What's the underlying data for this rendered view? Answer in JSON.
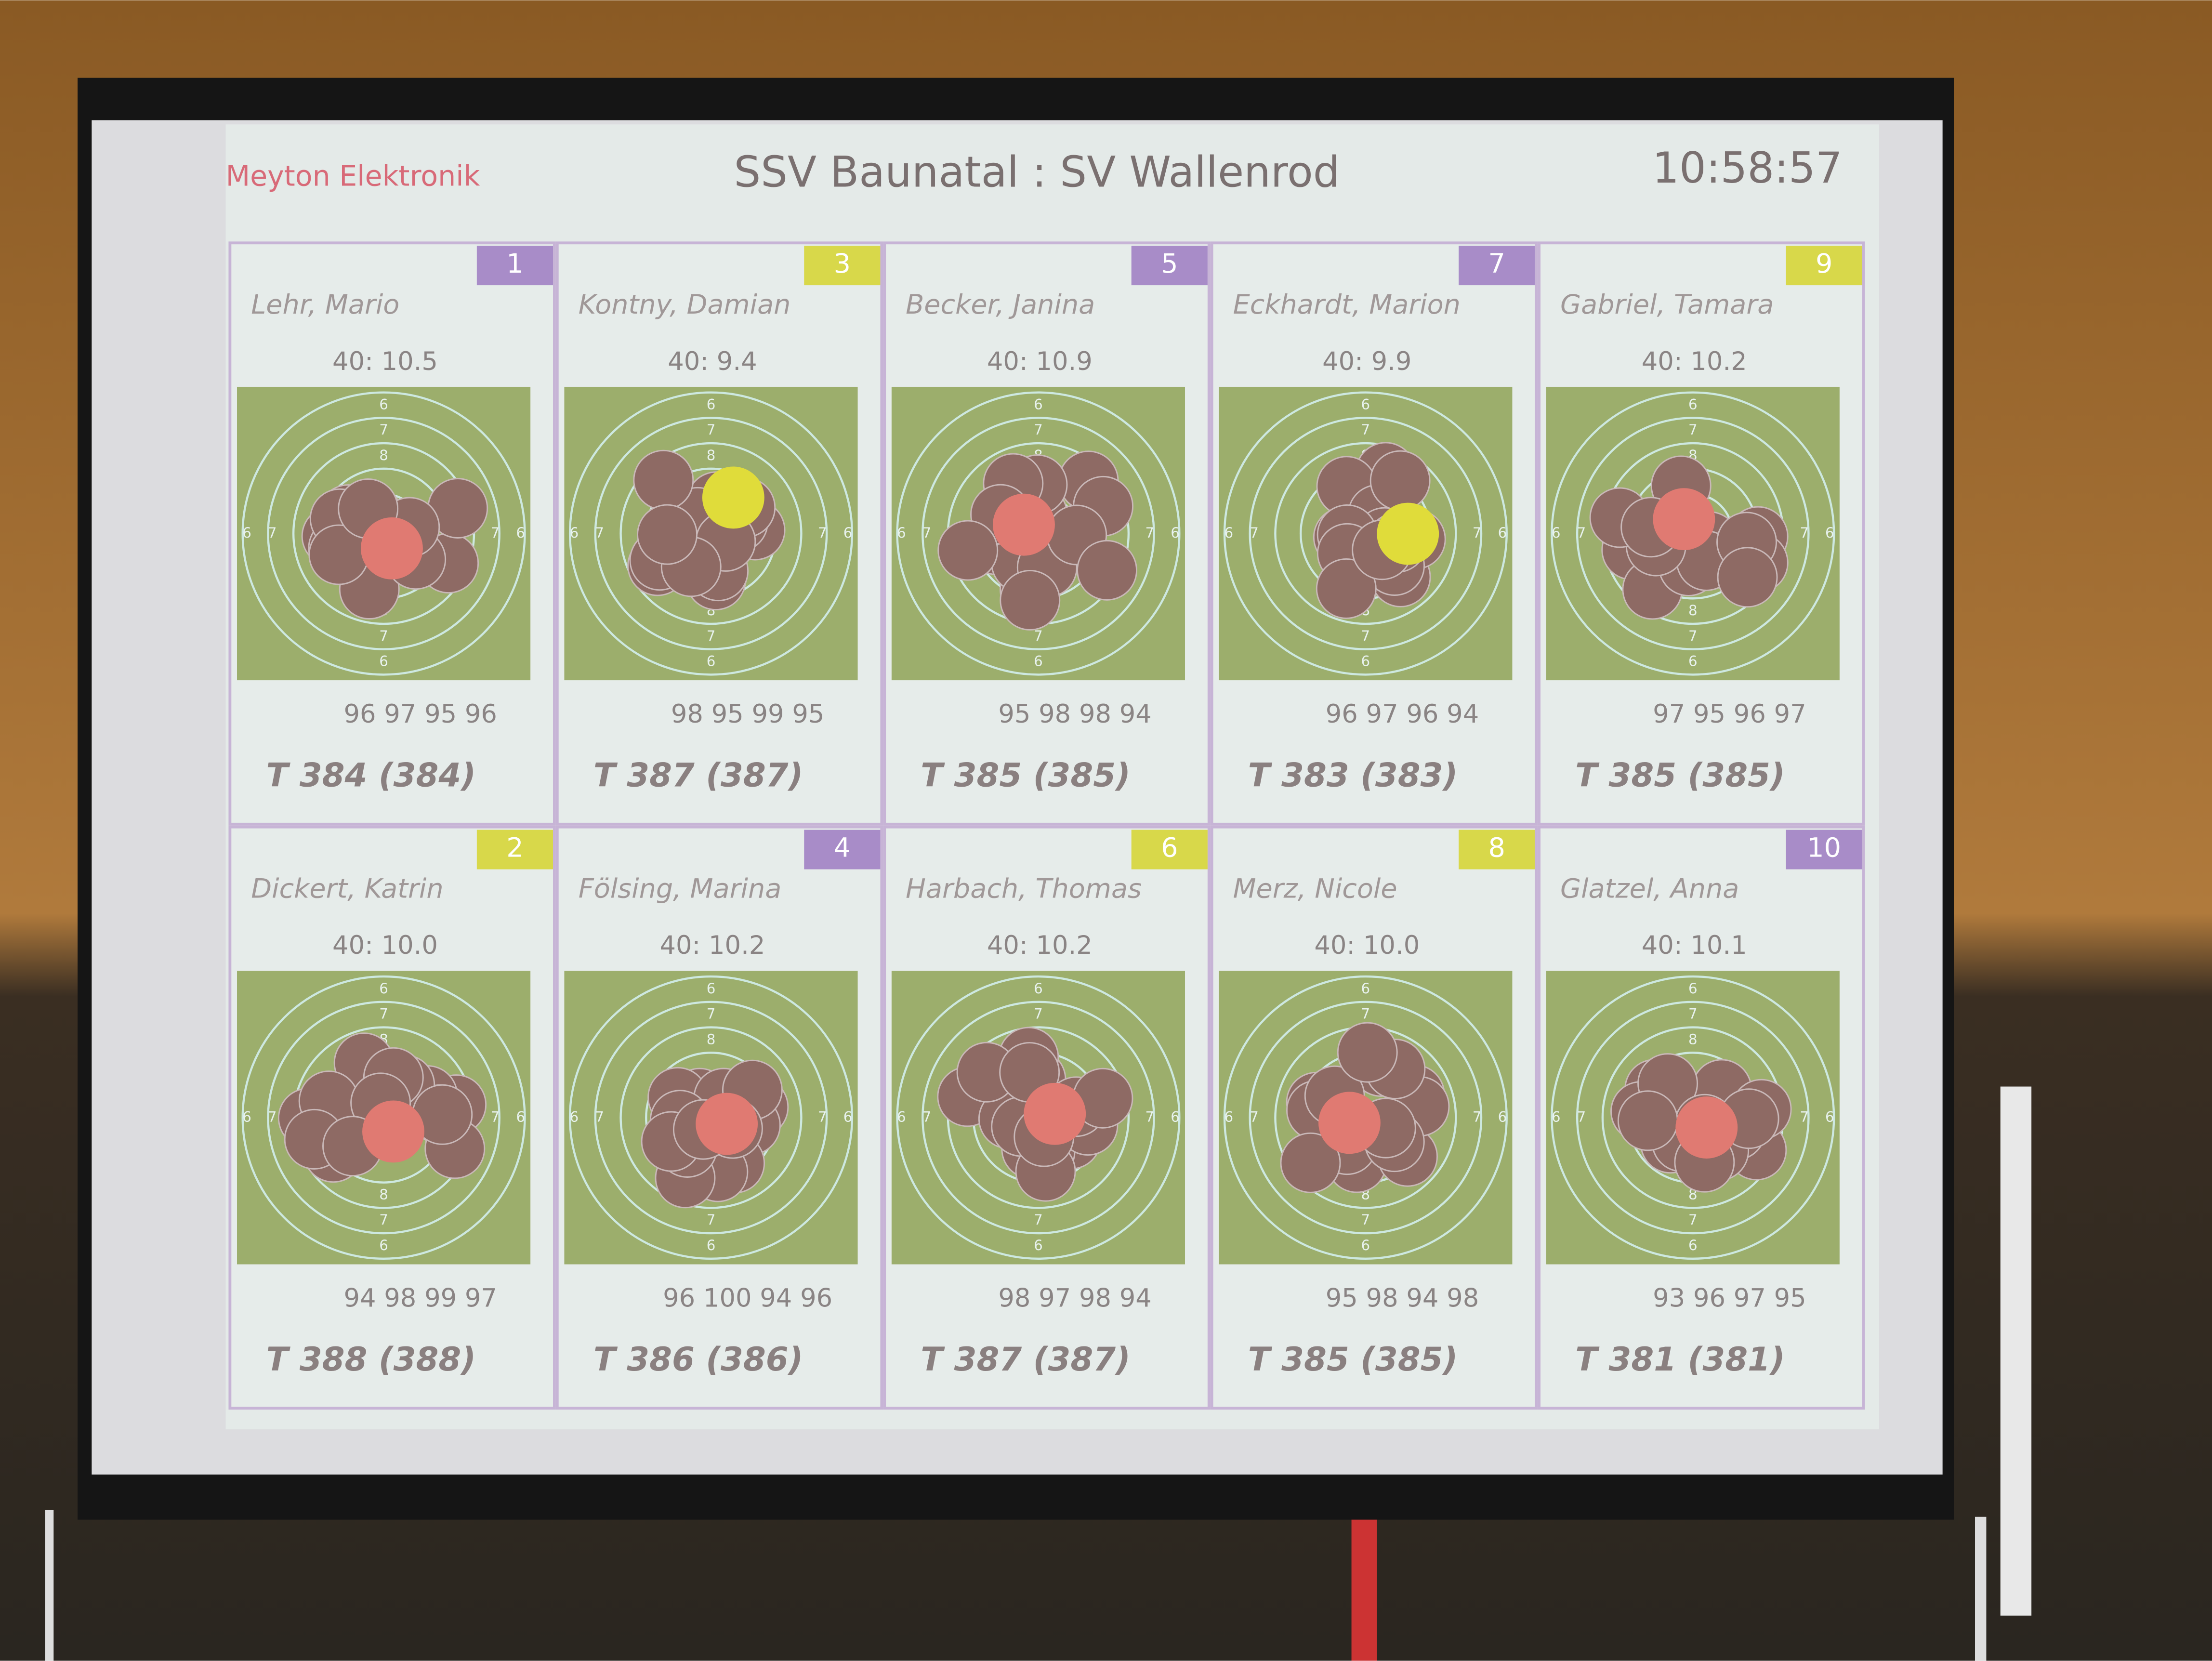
{
  "header": {
    "brand": "Meyton Elektronik",
    "title": "SSV Baunatal : SV Wallenrod",
    "time": "10:58:57"
  },
  "target": {
    "ring_labels": [
      "6",
      "7",
      "8"
    ]
  },
  "rows": [
    [
      {
        "number": "1",
        "badge_color": "#a88cc8",
        "name": "Lehr, Mario",
        "last_shot": "40:  10.5",
        "series": "96 97 95 96",
        "total": "T 384 (384)",
        "last_color": "#e07a72"
      },
      {
        "number": "3",
        "badge_color": "#d8d84a",
        "name": "Kontny, Damian",
        "last_shot": "40:   9.4",
        "series": "98 95 99 95",
        "total": "T 387 (387)",
        "last_color": "#e0dc3a"
      },
      {
        "number": "5",
        "badge_color": "#a88cc8",
        "name": "Becker, Janina",
        "last_shot": "40:  10.9",
        "series": "95 98 98 94",
        "total": "T 385 (385)",
        "last_color": "#e07a72"
      },
      {
        "number": "7",
        "badge_color": "#a88cc8",
        "name": "Eckhardt, Marion",
        "last_shot": "40:   9.9",
        "series": "96 97 96 94",
        "total": "T 383 (383)",
        "last_color": "#e0dc3a"
      },
      {
        "number": "9",
        "badge_color": "#d8d84a",
        "name": "Gabriel, Tamara",
        "last_shot": "40:  10.2",
        "series": "97 95 96 97",
        "total": "T 385 (385)",
        "last_color": "#e07a72"
      }
    ],
    [
      {
        "number": "2",
        "badge_color": "#d8d84a",
        "name": "Dickert, Katrin",
        "last_shot": "40:  10.0",
        "series": "94 98 99 97",
        "total": "T 388 (388)",
        "last_color": "#e07a72"
      },
      {
        "number": "4",
        "badge_color": "#a88cc8",
        "name": "Fölsing, Marina",
        "last_shot": "40:  10.2",
        "series": "96 100 94 96",
        "total": "T 386 (386)",
        "last_color": "#e07a72"
      },
      {
        "number": "6",
        "badge_color": "#d8d84a",
        "name": "Harbach, Thomas",
        "last_shot": "40:  10.2",
        "series": "98 97 98 94",
        "total": "T 387 (387)",
        "last_color": "#e07a72"
      },
      {
        "number": "8",
        "badge_color": "#d8d84a",
        "name": "Merz, Nicole",
        "last_shot": "40:  10.0",
        "series": "95 98 94 98",
        "total": "T 385 (385)",
        "last_color": "#e07a72"
      },
      {
        "number": "10",
        "badge_color": "#a88cc8",
        "name": "Glatzel, Anna",
        "last_shot": "40:  10.1",
        "series": "93 96 97 95",
        "total": "T 381 (381)",
        "last_color": "#e07a72"
      }
    ]
  ]
}
